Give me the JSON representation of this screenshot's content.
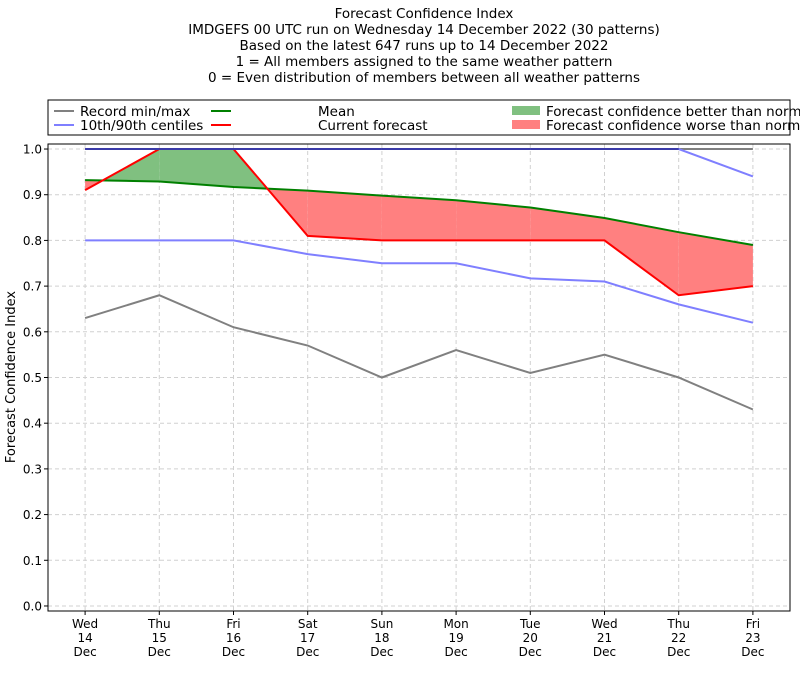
{
  "chart_data": {
    "type": "line",
    "title_lines": [
      "Forecast Confidence Index",
      "IMDGEFS 00 UTC run on Wednesday 14 December 2022 (30 patterns)",
      "Based on the latest 647 runs up to 14 December 2022",
      "1 = All members assigned to the same weather pattern",
      "0 = Even distribution of members between all weather patterns"
    ],
    "ylabel": "Forecast Confidence Index",
    "xlabel": "",
    "categories": [
      [
        "Wed",
        "14",
        "Dec"
      ],
      [
        "Thu",
        "15",
        "Dec"
      ],
      [
        "Fri",
        "16",
        "Dec"
      ],
      [
        "Sat",
        "17",
        "Dec"
      ],
      [
        "Sun",
        "18",
        "Dec"
      ],
      [
        "Mon",
        "19",
        "Dec"
      ],
      [
        "Tue",
        "20",
        "Dec"
      ],
      [
        "Wed",
        "21",
        "Dec"
      ],
      [
        "Thu",
        "22",
        "Dec"
      ],
      [
        "Fri",
        "23",
        "Dec"
      ]
    ],
    "ylim": [
      0,
      1.0
    ],
    "yticks": [
      "0.0",
      "0.1",
      "0.2",
      "0.3",
      "0.4",
      "0.5",
      "0.6",
      "0.7",
      "0.8",
      "0.9",
      "1.0"
    ],
    "grid": true,
    "legend_placement": "top, outside plot",
    "legend": [
      {
        "label": "Record min/max",
        "kind": "line",
        "color": "#808080"
      },
      {
        "label": "10th/90th centiles",
        "kind": "line",
        "color": "#7f7fff"
      },
      {
        "label": "Mean",
        "kind": "line",
        "color": "#008000"
      },
      {
        "label": "Current forecast",
        "kind": "line",
        "color": "#ff0000"
      },
      {
        "label": "Forecast confidence better than normal",
        "kind": "fill",
        "color": "#80c080"
      },
      {
        "label": "Forecast confidence worse than normal",
        "kind": "fill",
        "color": "#ff8080"
      }
    ],
    "series": [
      {
        "name": "Record max",
        "color": "#808080",
        "values": [
          1.0,
          1.0,
          1.0,
          1.0,
          1.0,
          1.0,
          1.0,
          1.0,
          1.0,
          1.0
        ]
      },
      {
        "name": "Record min",
        "color": "#808080",
        "values": [
          0.63,
          0.68,
          0.61,
          0.57,
          0.5,
          0.56,
          0.51,
          0.55,
          0.5,
          0.43
        ]
      },
      {
        "name": "90th centile",
        "color": "#7f7fff",
        "values": [
          1.0,
          1.0,
          1.0,
          1.0,
          1.0,
          1.0,
          1.0,
          1.0,
          1.0,
          0.94
        ]
      },
      {
        "name": "10th centile",
        "color": "#7f7fff",
        "values": [
          0.8,
          0.8,
          0.8,
          0.77,
          0.75,
          0.75,
          0.717,
          0.71,
          0.66,
          0.62
        ]
      },
      {
        "name": "Mean",
        "color": "#008000",
        "values": [
          0.932,
          0.929,
          0.917,
          0.909,
          0.898,
          0.888,
          0.872,
          0.849,
          0.818,
          0.79
        ]
      },
      {
        "name": "Current forecast",
        "color": "#ff0000",
        "values": [
          0.91,
          1.0,
          1.0,
          0.81,
          0.8,
          0.8,
          0.8,
          0.8,
          0.68,
          0.7
        ]
      }
    ]
  }
}
